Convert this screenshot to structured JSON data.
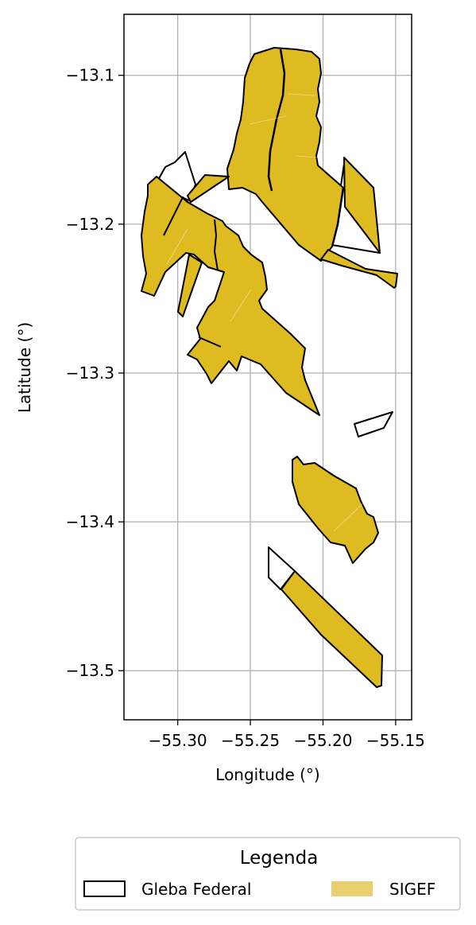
{
  "chart_data": {
    "type": "map",
    "xlabel": "Longitude (°)",
    "ylabel": "Latitude (°)",
    "xlim": [
      -55.337,
      -55.139
    ],
    "ylim": [
      -13.533,
      -13.059
    ],
    "xticks": [
      -55.3,
      -55.25,
      -55.2,
      -55.15
    ],
    "yticks": [
      -13.1,
      -13.2,
      -13.3,
      -13.4,
      -13.5
    ],
    "xtick_labels": [
      "−55.30",
      "−55.25",
      "−55.20",
      "−55.15"
    ],
    "ytick_labels": [
      "−13.1",
      "−13.2",
      "−13.3",
      "−13.4",
      "−13.5"
    ],
    "grid": true,
    "legend": {
      "title": "Legenda",
      "position": "bottom",
      "items": [
        {
          "label": "Gleba Federal",
          "style": "outline",
          "color": "#000000"
        },
        {
          "label": "SIGEF",
          "style": "fill",
          "color": "#e8d070"
        }
      ]
    },
    "colors": {
      "sigef": "#dfbb22",
      "gleba_edge": "#000000",
      "grid": "#b0b0b0"
    }
  }
}
